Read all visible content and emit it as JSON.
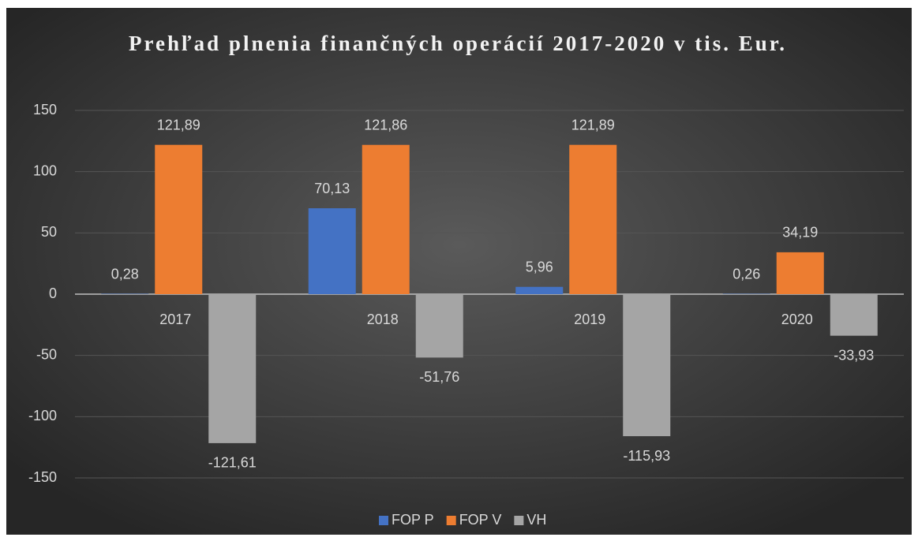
{
  "chart_data": {
    "type": "bar",
    "title": "Prehľad plnenia finančných operácií 2017-2020 v tis. Eur.",
    "categories": [
      "2017",
      "2018",
      "2019",
      "2020"
    ],
    "series": [
      {
        "name": "FOP P",
        "color": "#4472c4",
        "values": [
          0.28,
          70.13,
          5.96,
          0.26
        ],
        "value_labels": [
          "0,28",
          "70,13",
          "5,96",
          "0,26"
        ]
      },
      {
        "name": "FOP V",
        "color": "#ed7d31",
        "values": [
          121.89,
          121.86,
          121.89,
          34.19
        ],
        "value_labels": [
          "121,89",
          "121,86",
          "121,89",
          "34,19"
        ]
      },
      {
        "name": "VH",
        "color": "#a5a5a5",
        "values": [
          -121.61,
          -51.76,
          -115.93,
          -33.93
        ],
        "value_labels": [
          "-121,61",
          "-51,76",
          "-115,93",
          "-33,93"
        ]
      }
    ],
    "ylim": [
      -150,
      150
    ],
    "yticks": [
      -150,
      -100,
      -50,
      0,
      50,
      100,
      150
    ],
    "grid": true,
    "legend": "bottom"
  }
}
